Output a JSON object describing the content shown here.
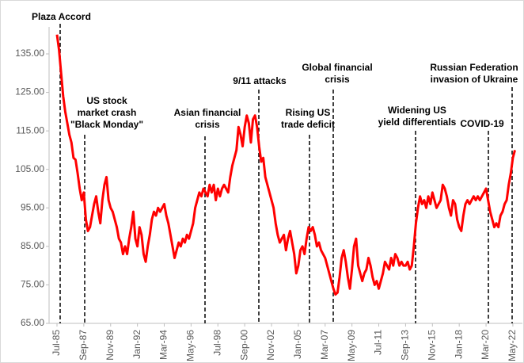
{
  "chart_data": {
    "type": "line",
    "categories": [
      "Jul-85",
      null,
      null,
      null,
      null,
      null,
      null,
      null,
      null,
      null,
      null,
      null,
      null,
      "Sep-87",
      null,
      null,
      null,
      null,
      null,
      null,
      null,
      null,
      null,
      null,
      null,
      null,
      "Nov-89",
      null,
      null,
      null,
      null,
      null,
      null,
      null,
      null,
      null,
      null,
      null,
      null,
      "Jan-92",
      null,
      null,
      null,
      null,
      null,
      null,
      null,
      null,
      null,
      null,
      null,
      null,
      "Mar-94",
      null,
      null,
      null,
      null,
      null,
      null,
      null,
      null,
      null,
      null,
      null,
      null,
      "May-96",
      null,
      null,
      null,
      null,
      null,
      null,
      null,
      null,
      null,
      null,
      null,
      null,
      "Jul-98",
      null,
      null,
      null,
      null,
      null,
      null,
      null,
      null,
      null,
      null,
      null,
      null,
      "Sep-00",
      null,
      null,
      null,
      null,
      null,
      null,
      null,
      null,
      null,
      null,
      null,
      null,
      "Nov-02",
      null,
      null,
      null,
      null,
      null,
      null,
      null,
      null,
      null,
      null,
      null,
      null,
      "Jan-05",
      null,
      null,
      null,
      null,
      null,
      null,
      null,
      null,
      null,
      null,
      null,
      null,
      "Mar-07",
      null,
      null,
      null,
      null,
      null,
      null,
      null,
      null,
      null,
      null,
      null,
      null,
      "May-09",
      null,
      null,
      null,
      null,
      null,
      null,
      null,
      null,
      null,
      null,
      null,
      null,
      "Jul-11",
      null,
      null,
      null,
      null,
      null,
      null,
      null,
      null,
      null,
      null,
      null,
      null,
      "Sep-13",
      null,
      null,
      null,
      null,
      null,
      null,
      null,
      null,
      null,
      null,
      null,
      null,
      "Nov-15",
      null,
      null,
      null,
      null,
      null,
      null,
      null,
      null,
      null,
      null,
      null,
      null,
      "Jan-18",
      null,
      null,
      null,
      null,
      null,
      null,
      null,
      null,
      null,
      null,
      null,
      null,
      "Mar-20",
      null,
      null,
      null,
      null,
      null,
      null,
      null,
      null,
      null,
      null,
      null,
      null,
      "May-22",
      null
    ],
    "series": [
      {
        "color": "#ff0000",
        "values": [
          140,
          136,
          130,
          124,
          120,
          117,
          114,
          112,
          108,
          107.5,
          104,
          100,
          97,
          99,
          92,
          89,
          90,
          93,
          96,
          98,
          94,
          91,
          97,
          101,
          103,
          97,
          95,
          94,
          92,
          90,
          87,
          86,
          83,
          85,
          83,
          87,
          90,
          94,
          87,
          85,
          90,
          88,
          83,
          81,
          85,
          88,
          92,
          94,
          93,
          95,
          94,
          95,
          96,
          93,
          91,
          88,
          85,
          82,
          84,
          86,
          85,
          87,
          86,
          88,
          87,
          89,
          91,
          95,
          97,
          99,
          98,
          100,
          99,
          98,
          101,
          99,
          101,
          97,
          100,
          98,
          100,
          101,
          100,
          99,
          103,
          106,
          108,
          110,
          116,
          114,
          111,
          116,
          119,
          117,
          112,
          118,
          119,
          116,
          111,
          107,
          108,
          103,
          101,
          99,
          97,
          95,
          91,
          88,
          86,
          87,
          88,
          84,
          87,
          89,
          86,
          83,
          78,
          80,
          84,
          85,
          83,
          87,
          90,
          89,
          90,
          88,
          85,
          86,
          84,
          83,
          82,
          80,
          78,
          76,
          74,
          72.5,
          73,
          77,
          82,
          84,
          81,
          77,
          74,
          79,
          85,
          87,
          80,
          78,
          76,
          78,
          79,
          82,
          80,
          77,
          75,
          76,
          74,
          76,
          78,
          81,
          80,
          79,
          82,
          80,
          83,
          82,
          80,
          81,
          80,
          80,
          81,
          79,
          80,
          85,
          91,
          95,
          98,
          96,
          97,
          95,
          98,
          96,
          99,
          97,
          95,
          96,
          97,
          101,
          100,
          98,
          95,
          93,
          97,
          96,
          92,
          90,
          89,
          93,
          96,
          97,
          96,
          97,
          98,
          97,
          98,
          97,
          98,
          99,
          100,
          97,
          94,
          92,
          90,
          91,
          90,
          93,
          94,
          96,
          97,
          101,
          104,
          108,
          110
        ]
      }
    ],
    "ylim": [
      65,
      142
    ],
    "yticks": [
      {
        "value": 65,
        "label": "65.00"
      },
      {
        "value": 75,
        "label": "75.00"
      },
      {
        "value": 85,
        "label": "85.00"
      },
      {
        "value": 95,
        "label": "95.00"
      },
      {
        "value": 105,
        "label": "105.00"
      },
      {
        "value": 115,
        "label": "115.00"
      },
      {
        "value": 125,
        "label": "125.00"
      },
      {
        "value": 135,
        "label": "135.00"
      }
    ],
    "annotations": [
      {
        "lines": [
          "Plaza Accord"
        ]
      },
      {
        "lines": [
          "US stock",
          "market crash",
          "\"Black Monday\""
        ]
      },
      {
        "lines": [
          "Asian financial",
          "crisis"
        ]
      },
      {
        "lines": [
          "9/11 attacks"
        ]
      },
      {
        "lines": [
          "Rising US",
          "trade deficit"
        ]
      },
      {
        "lines": [
          "Global financial",
          "crisis"
        ]
      },
      {
        "lines": [
          "Widening US",
          "yield differentials"
        ]
      },
      {
        "lines": [
          "COVID-19"
        ]
      },
      {
        "lines": [
          "Russian Federation",
          "invasion of Ukraine"
        ]
      }
    ]
  }
}
